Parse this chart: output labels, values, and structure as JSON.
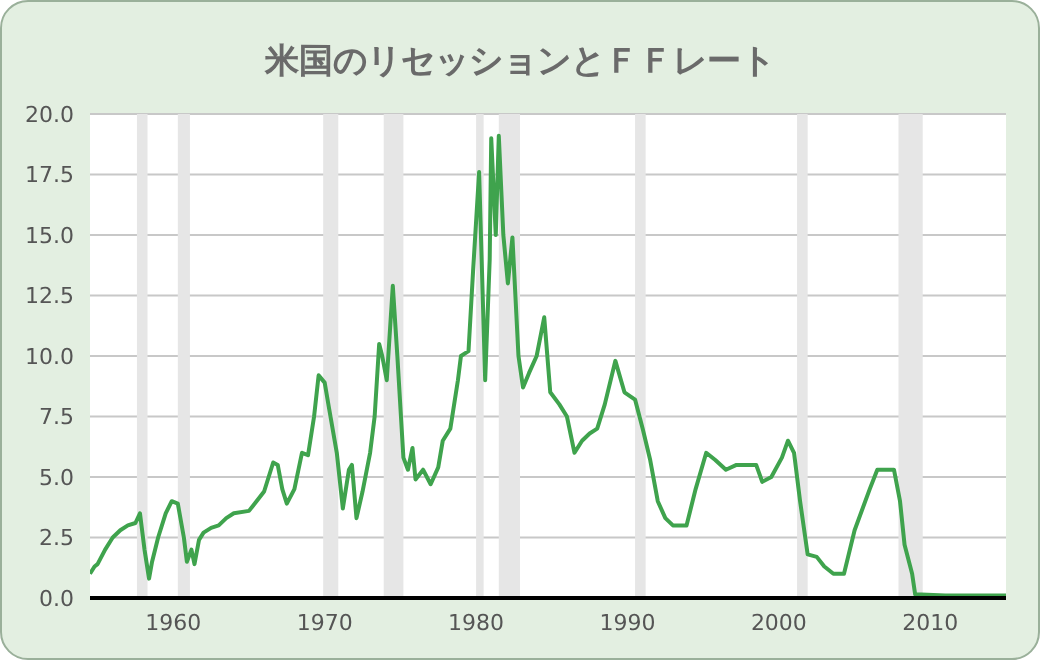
{
  "chart_data": {
    "type": "line",
    "title": "米国のリセッションとＦＦレート",
    "x": [
      1954.5,
      1954.8,
      1955,
      1955.5,
      1956,
      1956.5,
      1957,
      1957.5,
      1957.8,
      1958.1,
      1958.4,
      1958.6,
      1959,
      1959.5,
      1959.9,
      1960.3,
      1960.7,
      1960.9,
      1961.2,
      1961.4,
      1961.7,
      1962,
      1962.5,
      1963,
      1963.5,
      1964,
      1965,
      1965.5,
      1966,
      1966.6,
      1966.9,
      1967.2,
      1967.5,
      1968,
      1968.5,
      1968.9,
      1969.3,
      1969.6,
      1970,
      1970.3,
      1970.8,
      1971.2,
      1971.6,
      1971.8,
      1972.1,
      1972.5,
      1973,
      1973.3,
      1973.6,
      1973.8,
      1974.1,
      1974.5,
      1974.8,
      1975.2,
      1975.5,
      1975.8,
      1976,
      1976.5,
      1977,
      1977.5,
      1977.8,
      1978.3,
      1978.8,
      1979,
      1979.5,
      1979.8,
      1980.2,
      1980.6,
      1980.9,
      1981,
      1981.3,
      1981.5,
      1981.8,
      1982.1,
      1982.4,
      1982.8,
      1983.1,
      1983.5,
      1984,
      1984.5,
      1984.9,
      1985.5,
      1986,
      1986.5,
      1987,
      1987.5,
      1988,
      1988.5,
      1989.2,
      1989.8,
      1990.5,
      1991,
      1991.5,
      1992,
      1992.5,
      1993,
      1993.9,
      1994.5,
      1995.2,
      1995.8,
      1996.5,
      1997.2,
      1998.5,
      1998.9,
      1999.5,
      2000.2,
      2000.6,
      2001,
      2001.4,
      2001.9,
      2002.5,
      2003,
      2003.6,
      2004.3,
      2005,
      2006,
      2006.5,
      2007.6,
      2008,
      2008.3,
      2008.8,
      2009,
      2011,
      2015
    ],
    "series": [
      {
        "color": "#3fa34d",
        "values": [
          1.0,
          1.3,
          1.4,
          2.0,
          2.5,
          2.8,
          3.0,
          3.1,
          3.5,
          2.0,
          0.8,
          1.5,
          2.5,
          3.5,
          4.0,
          3.9,
          2.5,
          1.5,
          2.0,
          1.4,
          2.4,
          2.7,
          2.9,
          3.0,
          3.3,
          3.5,
          3.6,
          4.0,
          4.4,
          5.6,
          5.5,
          4.5,
          3.9,
          4.5,
          6.0,
          5.9,
          7.5,
          9.2,
          8.9,
          7.8,
          6.0,
          3.7,
          5.3,
          5.5,
          3.3,
          4.4,
          6.0,
          7.5,
          10.5,
          10.0,
          9.0,
          12.9,
          10.0,
          5.8,
          5.3,
          6.2,
          4.9,
          5.3,
          4.7,
          5.4,
          6.5,
          7.0,
          9.0,
          10.0,
          10.2,
          13.5,
          17.6,
          9.0,
          14.0,
          19.0,
          15.0,
          19.1,
          15.0,
          13.0,
          14.9,
          10.0,
          8.7,
          9.3,
          10.0,
          11.6,
          8.5,
          8.0,
          7.5,
          6.0,
          6.5,
          6.8,
          7.0,
          8.0,
          9.8,
          8.5,
          8.2,
          7.0,
          5.7,
          4.0,
          3.3,
          3.0,
          3.0,
          4.5,
          6.0,
          5.7,
          5.3,
          5.5,
          5.5,
          4.8,
          5.0,
          5.8,
          6.5,
          6.0,
          4.0,
          1.8,
          1.7,
          1.3,
          1.0,
          1.0,
          2.8,
          4.5,
          5.3,
          5.3,
          4.0,
          2.2,
          1.0,
          0.15,
          0.1,
          0.1
        ]
      }
    ],
    "xlim": [
      1954.5,
      2015
    ],
    "xticks": [
      1960,
      1970,
      1980,
      1990,
      2000,
      2010
    ],
    "ylim": [
      0,
      20
    ],
    "yticks": [
      {
        "value": 0,
        "label": "0.0"
      },
      {
        "value": 2.5,
        "label": "2.5"
      },
      {
        "value": 5,
        "label": "5.0"
      },
      {
        "value": 7.5,
        "label": "7.5"
      },
      {
        "value": 10,
        "label": "10.0"
      },
      {
        "value": 12.5,
        "label": "12.5"
      },
      {
        "value": 15,
        "label": "15.0"
      },
      {
        "value": 17.5,
        "label": "17.5"
      },
      {
        "value": 20,
        "label": "20.0"
      }
    ],
    "grid": "y",
    "legend": false,
    "marker": "none",
    "line_style": "solid",
    "bands": [
      {
        "axis": "x",
        "from": 1957.6,
        "to": 1958.3,
        "color": "#e6e6e6"
      },
      {
        "axis": "x",
        "from": 1960.3,
        "to": 1961.1,
        "color": "#e6e6e6"
      },
      {
        "axis": "x",
        "from": 1969.9,
        "to": 1970.9,
        "color": "#e6e6e6"
      },
      {
        "axis": "x",
        "from": 1973.9,
        "to": 1975.2,
        "color": "#e6e6e6"
      },
      {
        "axis": "x",
        "from": 1980.0,
        "to": 1980.5,
        "color": "#e6e6e6"
      },
      {
        "axis": "x",
        "from": 1981.5,
        "to": 1982.9,
        "color": "#e6e6e6"
      },
      {
        "axis": "x",
        "from": 1990.5,
        "to": 1991.2,
        "color": "#e6e6e6"
      },
      {
        "axis": "x",
        "from": 2001.2,
        "to": 2001.9,
        "color": "#e6e6e6"
      },
      {
        "axis": "x",
        "from": 2007.9,
        "to": 2009.5,
        "color": "#e6e6e6"
      }
    ]
  }
}
